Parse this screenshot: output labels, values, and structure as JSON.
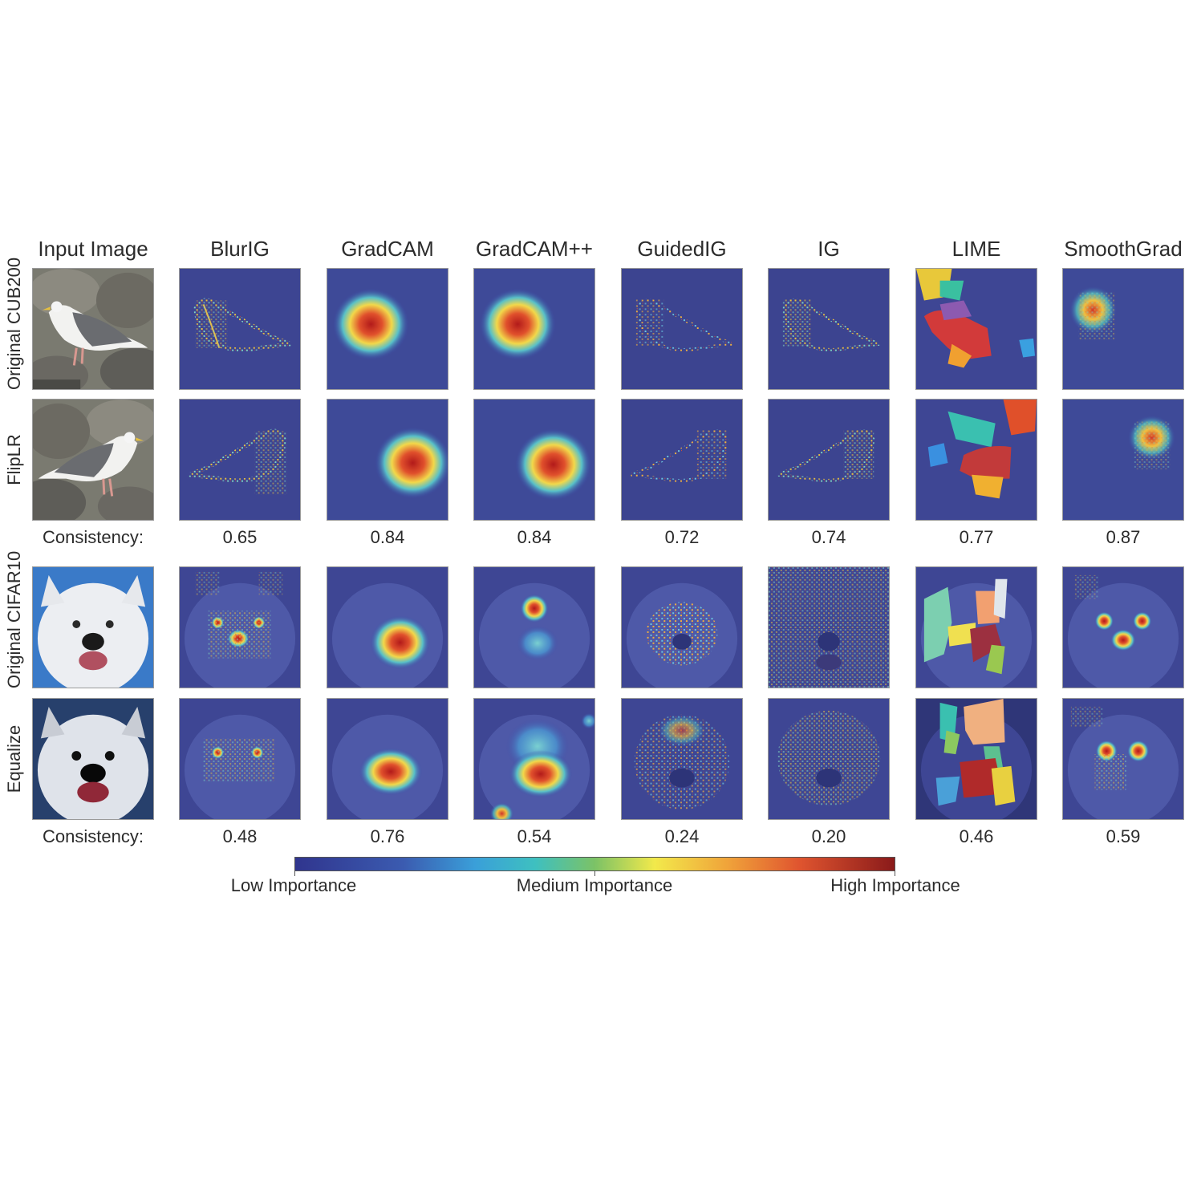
{
  "columns": [
    "Input Image",
    "BlurIG",
    "GradCAM",
    "GradCAM++",
    "GuidedIG",
    "IG",
    "LIME",
    "SmoothGrad"
  ],
  "rows": [
    "Original CUB200",
    "FlipLR",
    "Original CIFAR10",
    "Equalize"
  ],
  "consistency_label": "Consistency:",
  "consistency": {
    "cub200": [
      "0.65",
      "0.84",
      "0.84",
      "0.72",
      "0.74",
      "0.77",
      "0.87"
    ],
    "cifar10": [
      "0.48",
      "0.76",
      "0.54",
      "0.24",
      "0.20",
      "0.46",
      "0.59"
    ]
  },
  "colorbar": {
    "labels": [
      "Low Importance",
      "Medium Importance",
      "High Importance"
    ]
  }
}
